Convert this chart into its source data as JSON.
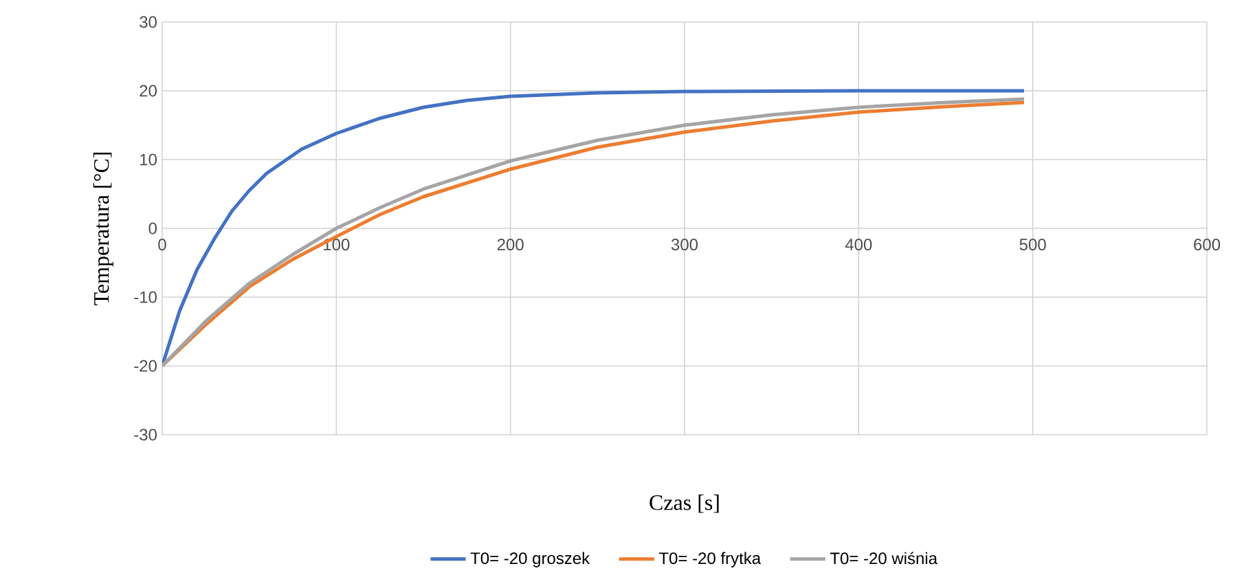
{
  "chart_data": {
    "type": "line",
    "xlabel": "Czas [s]",
    "ylabel": "Temperatura [°C]",
    "xlim": [
      0,
      600
    ],
    "ylim": [
      -30,
      30
    ],
    "xticks": [
      0,
      100,
      200,
      300,
      400,
      500,
      600
    ],
    "yticks": [
      -30,
      -20,
      -10,
      0,
      10,
      20,
      30
    ],
    "grid": true,
    "legend": "bottom",
    "marker": "none",
    "line_style": "solid",
    "series": [
      {
        "name": "T0= -20 groszek",
        "color": "#4472c4",
        "x": [
          0,
          10,
          20,
          30,
          40,
          50,
          60,
          80,
          100,
          125,
          150,
          175,
          200,
          250,
          300,
          400,
          495
        ],
        "values": [
          -20,
          -12,
          -6,
          -1.5,
          2.5,
          5.5,
          8,
          11.5,
          13.8,
          16,
          17.6,
          18.6,
          19.2,
          19.7,
          19.9,
          20,
          20
        ]
      },
      {
        "name": "T0= -20 frytka",
        "color": "#ed7d31",
        "x": [
          0,
          25,
          50,
          75,
          100,
          125,
          150,
          200,
          250,
          300,
          350,
          400,
          450,
          495
        ],
        "values": [
          -20,
          -14,
          -8.5,
          -4.5,
          -1.2,
          2,
          4.6,
          8.6,
          11.8,
          14,
          15.6,
          16.9,
          17.7,
          18.3
        ]
      },
      {
        "name": "T0= -20 wiśnia",
        "color": "#a5a5a5",
        "x": [
          0,
          25,
          50,
          75,
          100,
          125,
          150,
          200,
          250,
          300,
          350,
          400,
          450,
          495
        ],
        "values": [
          -20,
          -13.5,
          -8,
          -3.8,
          0,
          3,
          5.7,
          9.8,
          12.8,
          15,
          16.5,
          17.6,
          18.3,
          18.8
        ]
      }
    ]
  }
}
